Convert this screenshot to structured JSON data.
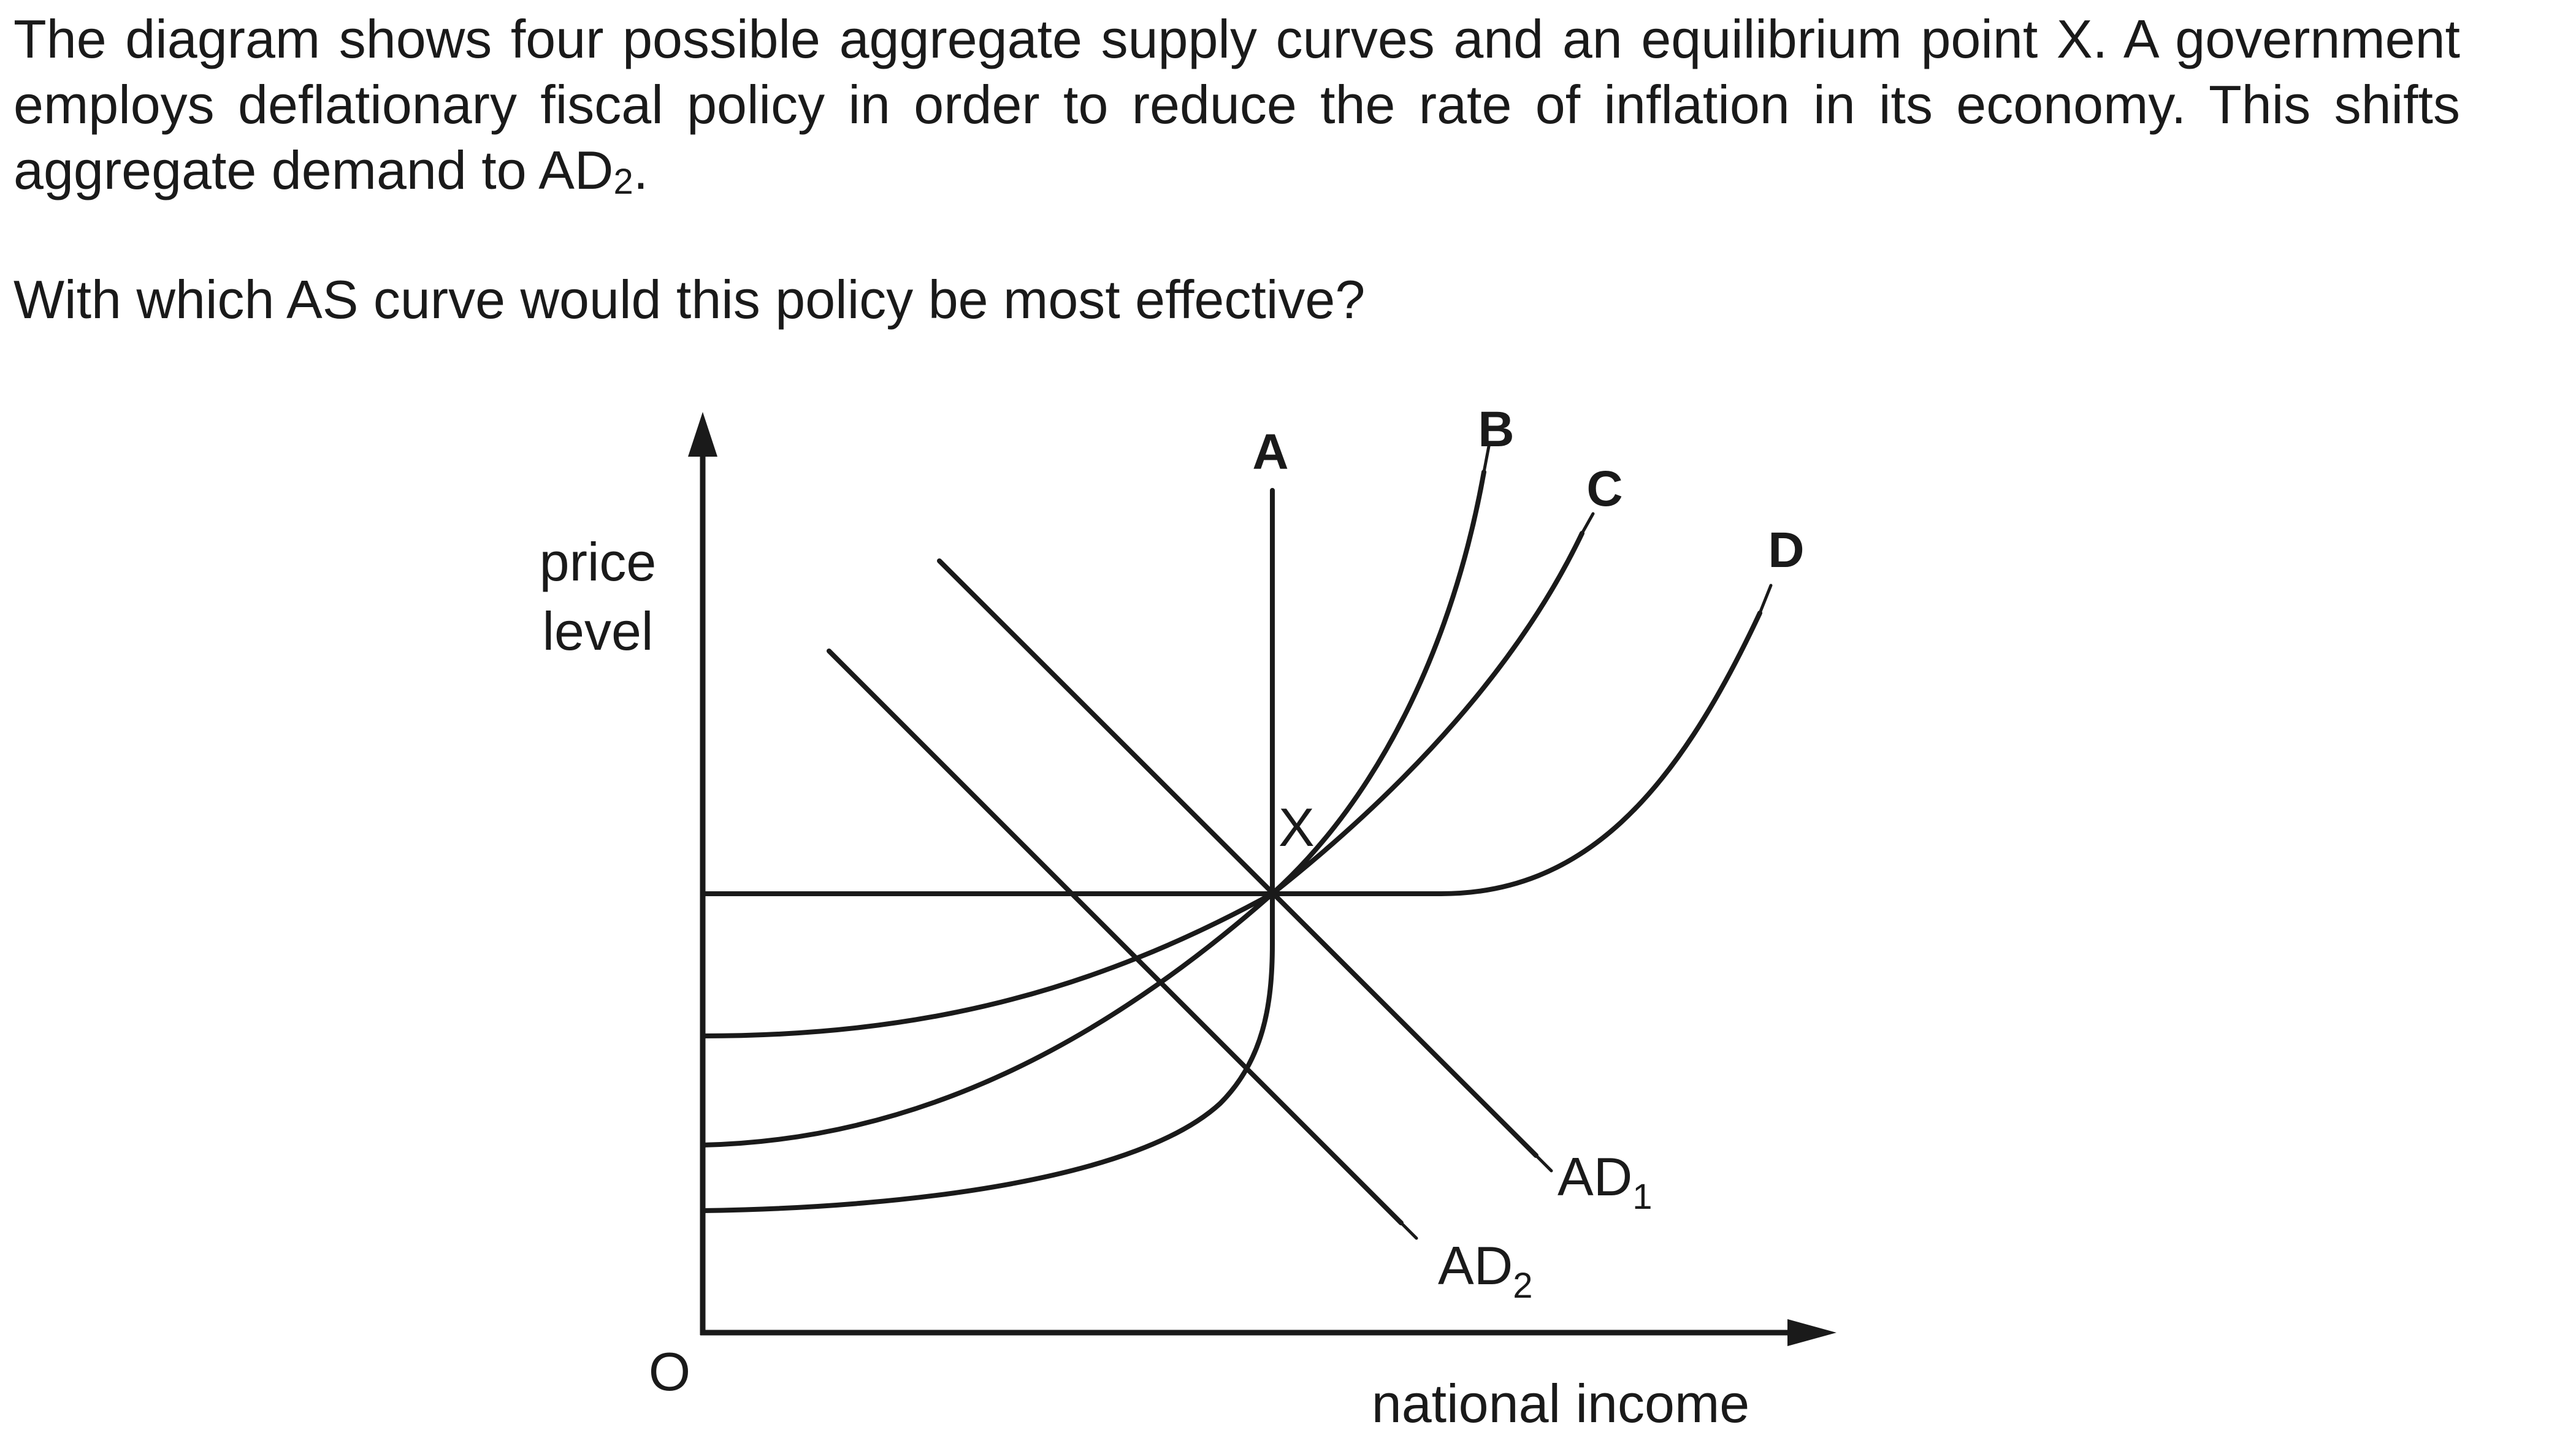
{
  "question": {
    "paragraph_pre": "The diagram shows four possible aggregate supply curves and an equilibrium point X. A government employs deflationary fiscal policy in order to reduce the rate of inflation in its economy. This shifts aggregate demand to AD",
    "paragraph_sub": "2",
    "paragraph_post": ".",
    "prompt": "With which AS curve would this policy be most effective?"
  },
  "diagram": {
    "y_axis_label_line1": "price",
    "y_axis_label_line2": "level",
    "x_axis_label": "national income",
    "origin_label": "O",
    "equilibrium_label": "X",
    "curves": [
      {
        "id": "A",
        "label": "A"
      },
      {
        "id": "B",
        "label": "B"
      },
      {
        "id": "C",
        "label": "C"
      },
      {
        "id": "D",
        "label": "D"
      }
    ],
    "demand": [
      {
        "base": "AD",
        "sub": "1"
      },
      {
        "base": "AD",
        "sub": "2"
      }
    ]
  }
}
